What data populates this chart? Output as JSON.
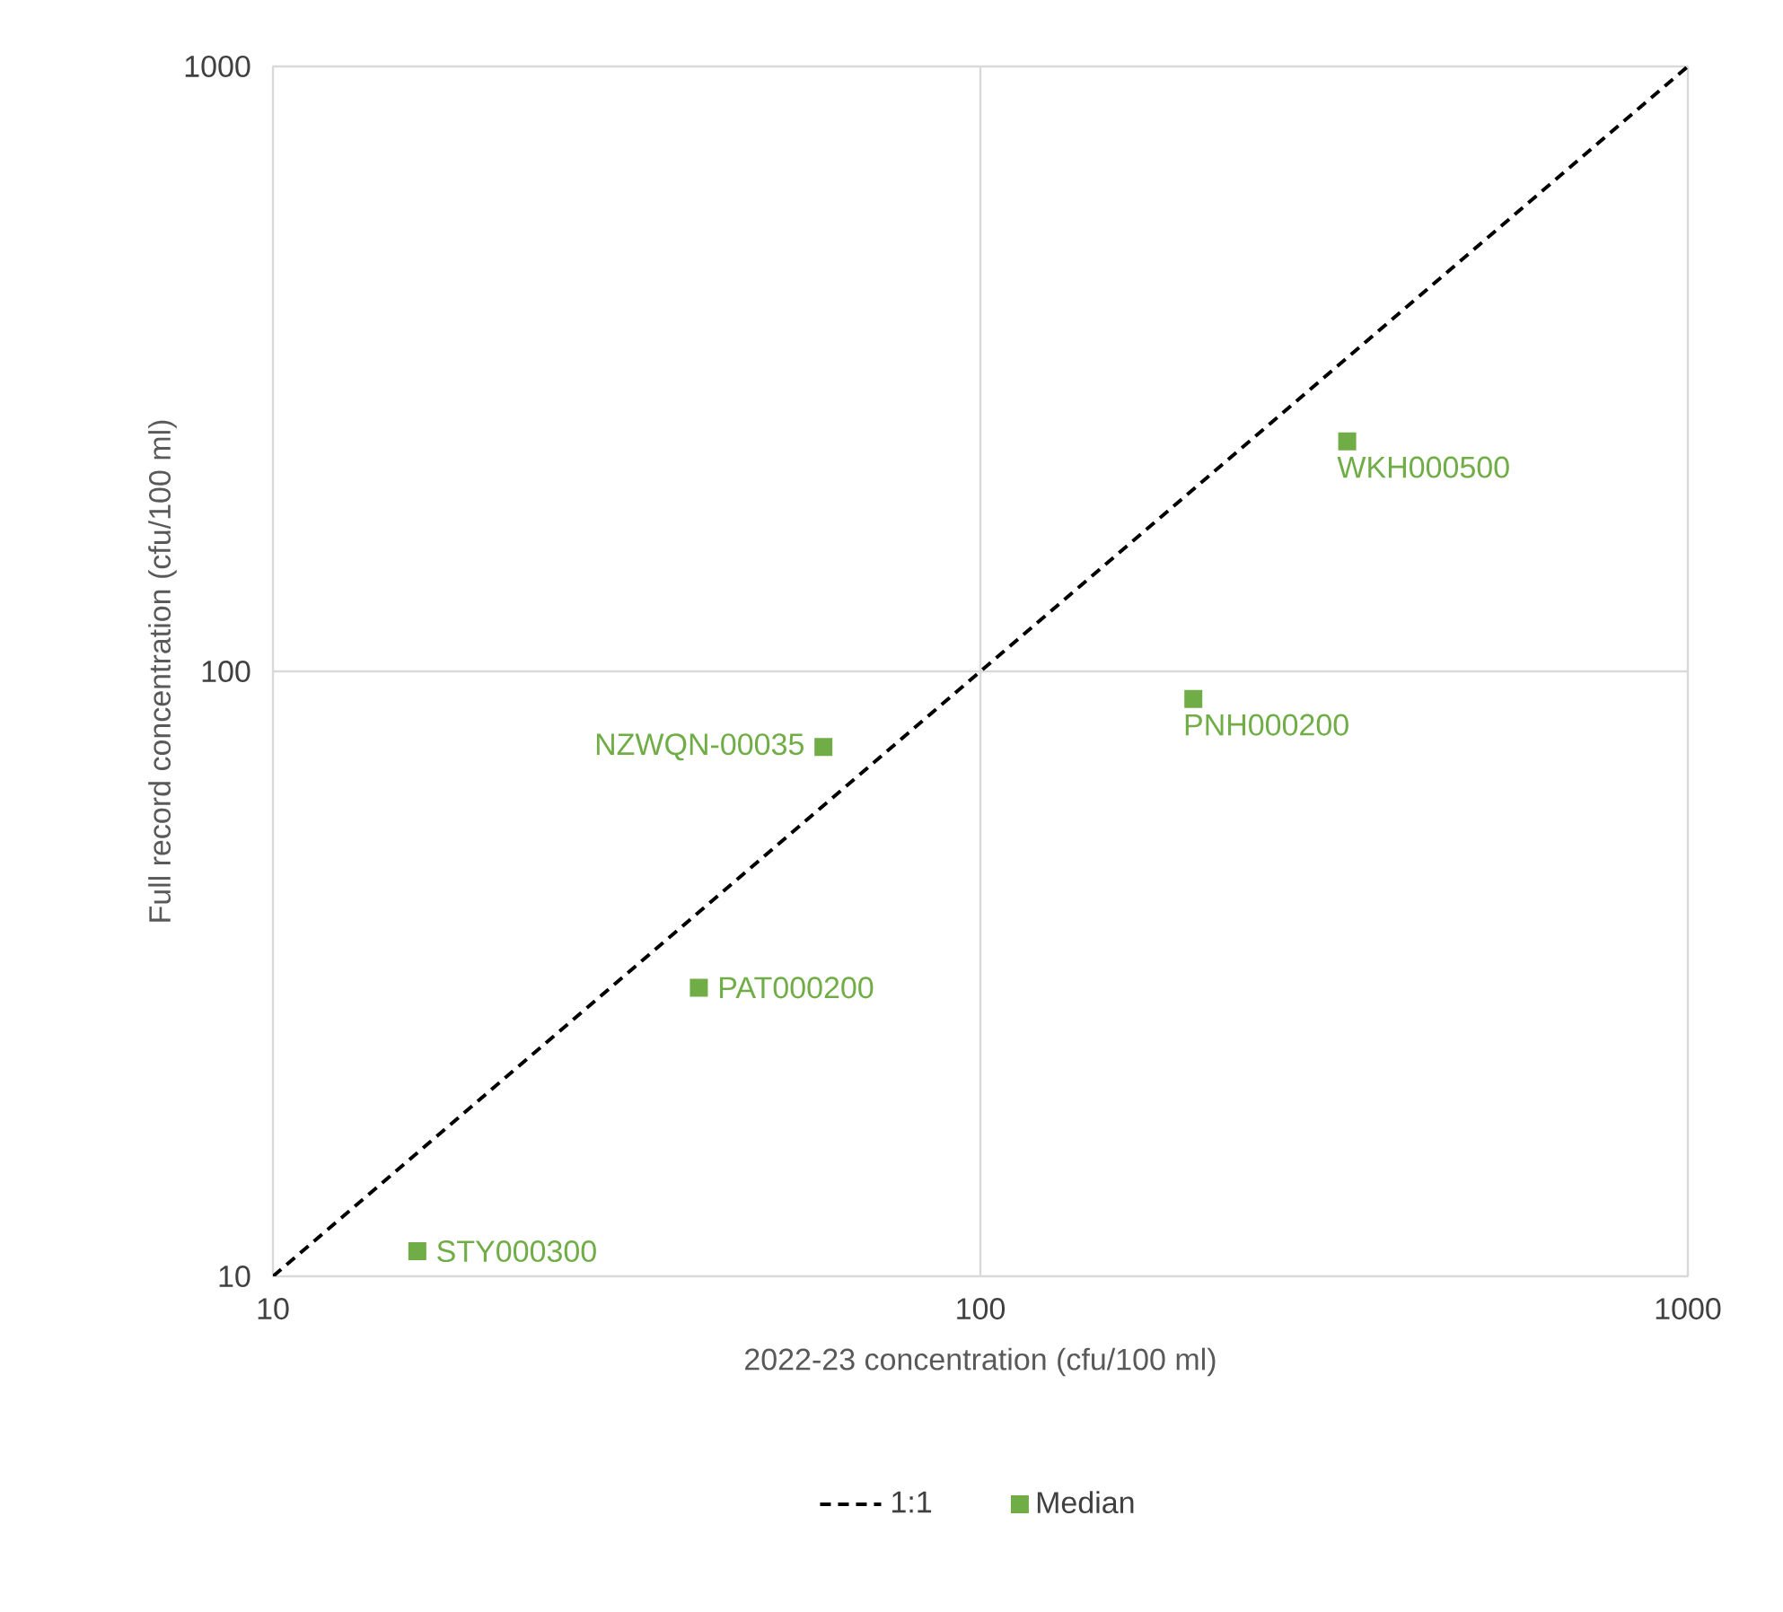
{
  "chart_data": {
    "type": "scatter",
    "xlabel": "2022-23 concentration (cfu/100 ml)",
    "ylabel": "Full record concentration (cfu/100 ml)",
    "log": "xy",
    "xlim": [
      10,
      1000
    ],
    "ylim": [
      10,
      1000
    ],
    "xticks": [
      10,
      100,
      1000
    ],
    "yticks": [
      10,
      100,
      1000
    ],
    "grid": true,
    "legend": "bottom",
    "series": [
      {
        "name": "1:1",
        "type": "line",
        "color": "#000000",
        "line_style": "dashed",
        "marker": "none",
        "x": [
          10,
          1000
        ],
        "values": [
          10,
          1000
        ]
      },
      {
        "name": "Median",
        "color": "#70ad47",
        "marker": "square",
        "x": [
          16,
          40,
          60,
          200,
          330
        ],
        "values": [
          11,
          30,
          75,
          90,
          240
        ]
      }
    ],
    "annotations": [
      {
        "text": "STY000300",
        "x": 16,
        "y": 11
      },
      {
        "text": "PAT000200",
        "x": 40,
        "y": 30
      },
      {
        "text": "NZWQN-00035",
        "x": 60,
        "y": 75
      },
      {
        "text": "PNH000200",
        "x": 200,
        "y": 90
      },
      {
        "text": "WKH000500",
        "x": 330,
        "y": 240
      }
    ]
  }
}
